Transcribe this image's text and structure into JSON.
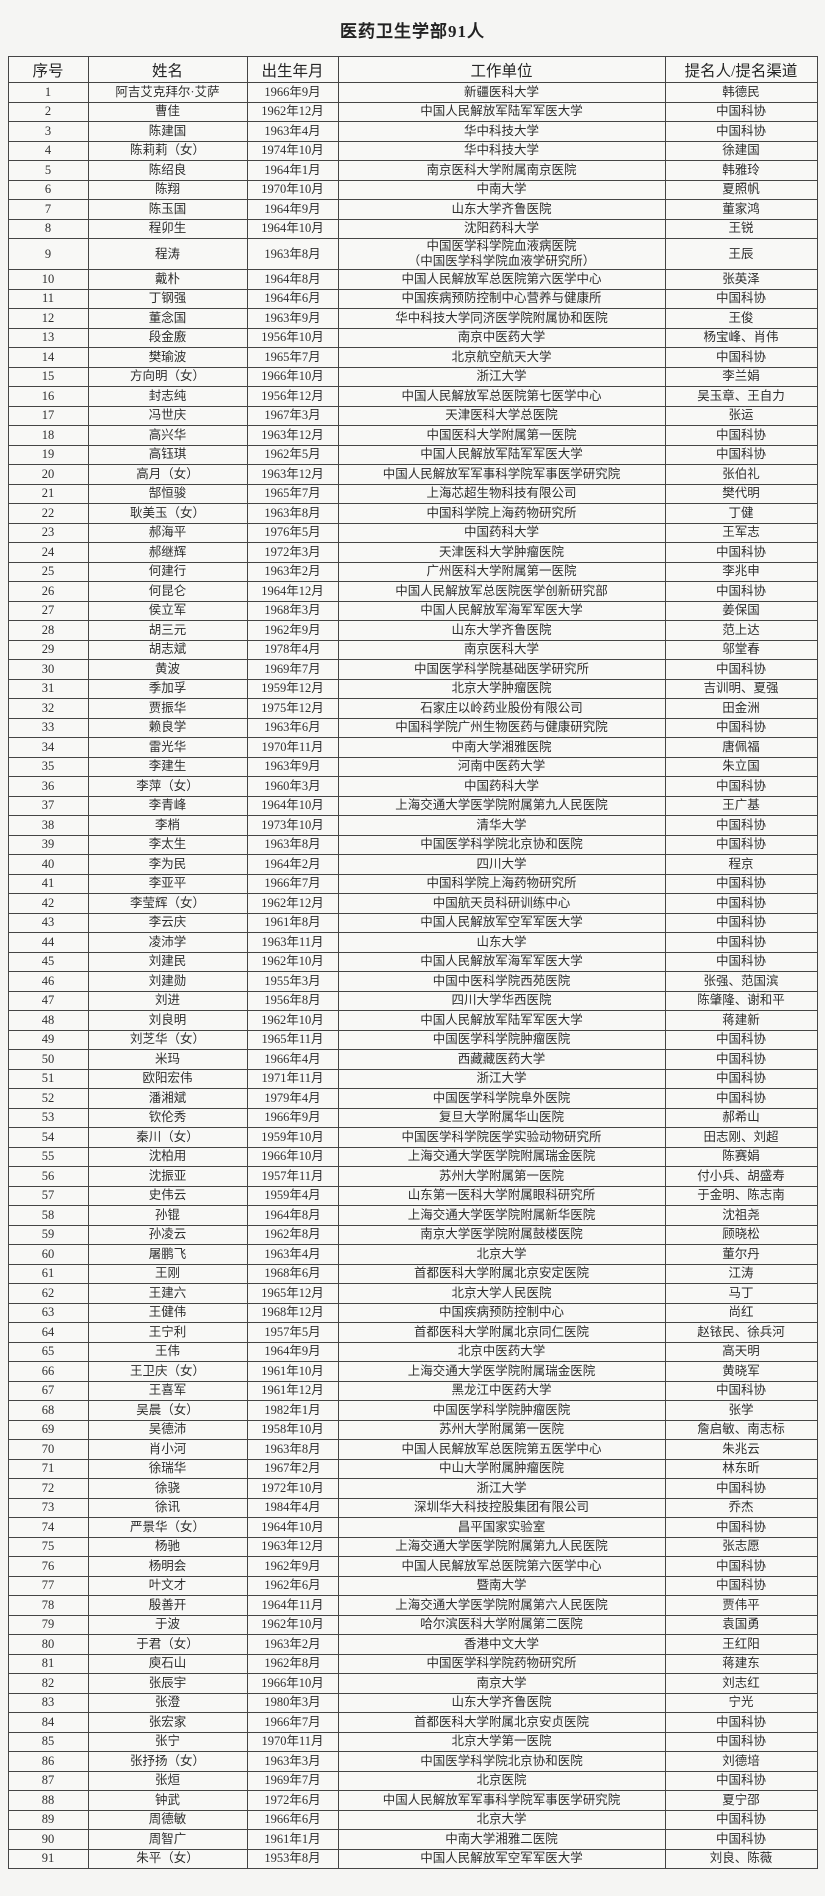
{
  "title": "医药卫生学部91人",
  "colors": {
    "page_background": "#f5f5f3",
    "table_background": "#f8f8f6",
    "border": "#454545",
    "text": "#2e2e2e"
  },
  "table": {
    "columns": [
      "序号",
      "姓名",
      "出生年月",
      "工作单位",
      "提名人/提名渠道"
    ],
    "rows": [
      [
        "1",
        "阿吉艾克拜尔·艾萨",
        "1966年9月",
        "新疆医科大学",
        "韩德民"
      ],
      [
        "2",
        "曹佳",
        "1962年12月",
        "中国人民解放军陆军军医大学",
        "中国科协"
      ],
      [
        "3",
        "陈建国",
        "1963年4月",
        "华中科技大学",
        "中国科协"
      ],
      [
        "4",
        "陈莉莉（女）",
        "1974年10月",
        "华中科技大学",
        "徐建国"
      ],
      [
        "5",
        "陈绍良",
        "1964年1月",
        "南京医科大学附属南京医院",
        "韩雅玲"
      ],
      [
        "6",
        "陈翔",
        "1970年10月",
        "中南大学",
        "夏照帆"
      ],
      [
        "7",
        "陈玉国",
        "1964年9月",
        "山东大学齐鲁医院",
        "董家鸿"
      ],
      [
        "8",
        "程卯生",
        "1964年10月",
        "沈阳药科大学",
        "王锐"
      ],
      [
        "9",
        "程涛",
        "1963年8月",
        "中国医学科学院血液病医院\n（中国医学科学院血液学研究所）",
        "王辰"
      ],
      [
        "10",
        "戴朴",
        "1964年8月",
        "中国人民解放军总医院第六医学中心",
        "张英泽"
      ],
      [
        "11",
        "丁钢强",
        "1964年6月",
        "中国疾病预防控制中心营养与健康所",
        "中国科协"
      ],
      [
        "12",
        "董念国",
        "1963年9月",
        "华中科技大学同济医学院附属协和医院",
        "王俊"
      ],
      [
        "13",
        "段金廒",
        "1956年10月",
        "南京中医药大学",
        "杨宝峰、肖伟"
      ],
      [
        "14",
        "樊瑜波",
        "1965年7月",
        "北京航空航天大学",
        "中国科协"
      ],
      [
        "15",
        "方向明（女）",
        "1966年10月",
        "浙江大学",
        "李兰娟"
      ],
      [
        "16",
        "封志纯",
        "1956年12月",
        "中国人民解放军总医院第七医学中心",
        "吴玉章、王自力"
      ],
      [
        "17",
        "冯世庆",
        "1967年3月",
        "天津医科大学总医院",
        "张运"
      ],
      [
        "18",
        "高兴华",
        "1963年12月",
        "中国医科大学附属第一医院",
        "中国科协"
      ],
      [
        "19",
        "高钰琪",
        "1962年5月",
        "中国人民解放军陆军军医大学",
        "中国科协"
      ],
      [
        "20",
        "高月（女）",
        "1963年12月",
        "中国人民解放军军事科学院军事医学研究院",
        "张伯礼"
      ],
      [
        "21",
        "郜恒骏",
        "1965年7月",
        "上海芯超生物科技有限公司",
        "樊代明"
      ],
      [
        "22",
        "耿美玉（女）",
        "1963年8月",
        "中国科学院上海药物研究所",
        "丁健"
      ],
      [
        "23",
        "郝海平",
        "1976年5月",
        "中国药科大学",
        "王军志"
      ],
      [
        "24",
        "郝继辉",
        "1972年3月",
        "天津医科大学肿瘤医院",
        "中国科协"
      ],
      [
        "25",
        "何建行",
        "1963年2月",
        "广州医科大学附属第一医院",
        "李兆申"
      ],
      [
        "26",
        "何昆仑",
        "1964年12月",
        "中国人民解放军总医院医学创新研究部",
        "中国科协"
      ],
      [
        "27",
        "侯立军",
        "1968年3月",
        "中国人民解放军海军军医大学",
        "姜保国"
      ],
      [
        "28",
        "胡三元",
        "1962年9月",
        "山东大学齐鲁医院",
        "范上达"
      ],
      [
        "29",
        "胡志斌",
        "1978年4月",
        "南京医科大学",
        "邬堂春"
      ],
      [
        "30",
        "黄波",
        "1969年7月",
        "中国医学科学院基础医学研究所",
        "中国科协"
      ],
      [
        "31",
        "季加孚",
        "1959年12月",
        "北京大学肿瘤医院",
        "吉训明、夏强"
      ],
      [
        "32",
        "贾振华",
        "1975年12月",
        "石家庄以岭药业股份有限公司",
        "田金洲"
      ],
      [
        "33",
        "赖良学",
        "1963年6月",
        "中国科学院广州生物医药与健康研究院",
        "中国科协"
      ],
      [
        "34",
        "雷光华",
        "1970年11月",
        "中南大学湘雅医院",
        "唐佩福"
      ],
      [
        "35",
        "李建生",
        "1963年9月",
        "河南中医药大学",
        "朱立国"
      ],
      [
        "36",
        "李萍（女）",
        "1960年3月",
        "中国药科大学",
        "中国科协"
      ],
      [
        "37",
        "李青峰",
        "1964年10月",
        "上海交通大学医学院附属第九人民医院",
        "王广基"
      ],
      [
        "38",
        "李梢",
        "1973年10月",
        "清华大学",
        "中国科协"
      ],
      [
        "39",
        "李太生",
        "1963年8月",
        "中国医学科学院北京协和医院",
        "中国科协"
      ],
      [
        "40",
        "李为民",
        "1964年2月",
        "四川大学",
        "程京"
      ],
      [
        "41",
        "李亚平",
        "1966年7月",
        "中国科学院上海药物研究所",
        "中国科协"
      ],
      [
        "42",
        "李莹辉（女）",
        "1962年12月",
        "中国航天员科研训练中心",
        "中国科协"
      ],
      [
        "43",
        "李云庆",
        "1961年8月",
        "中国人民解放军空军军医大学",
        "中国科协"
      ],
      [
        "44",
        "凌沛学",
        "1963年11月",
        "山东大学",
        "中国科协"
      ],
      [
        "45",
        "刘建民",
        "1962年10月",
        "中国人民解放军海军军医大学",
        "中国科协"
      ],
      [
        "46",
        "刘建勋",
        "1955年3月",
        "中国中医科学院西苑医院",
        "张强、范国滨"
      ],
      [
        "47",
        "刘进",
        "1956年8月",
        "四川大学华西医院",
        "陈肇隆、谢和平"
      ],
      [
        "48",
        "刘良明",
        "1962年10月",
        "中国人民解放军陆军军医大学",
        "蒋建新"
      ],
      [
        "49",
        "刘芝华（女）",
        "1965年11月",
        "中国医学科学院肿瘤医院",
        "中国科协"
      ],
      [
        "50",
        "米玛",
        "1966年4月",
        "西藏藏医药大学",
        "中国科协"
      ],
      [
        "51",
        "欧阳宏伟",
        "1971年11月",
        "浙江大学",
        "中国科协"
      ],
      [
        "52",
        "潘湘斌",
        "1979年4月",
        "中国医学科学院阜外医院",
        "中国科协"
      ],
      [
        "53",
        "钦伦秀",
        "1966年9月",
        "复旦大学附属华山医院",
        "郝希山"
      ],
      [
        "54",
        "秦川（女）",
        "1959年10月",
        "中国医学科学院医学实验动物研究所",
        "田志刚、刘超"
      ],
      [
        "55",
        "沈柏用",
        "1966年10月",
        "上海交通大学医学院附属瑞金医院",
        "陈赛娟"
      ],
      [
        "56",
        "沈振亚",
        "1957年11月",
        "苏州大学附属第一医院",
        "付小兵、胡盛寿"
      ],
      [
        "57",
        "史伟云",
        "1959年4月",
        "山东第一医科大学附属眼科研究所",
        "于金明、陈志南"
      ],
      [
        "58",
        "孙锟",
        "1964年8月",
        "上海交通大学医学院附属新华医院",
        "沈祖尧"
      ],
      [
        "59",
        "孙凌云",
        "1962年8月",
        "南京大学医学院附属鼓楼医院",
        "顾晓松"
      ],
      [
        "60",
        "屠鹏飞",
        "1963年4月",
        "北京大学",
        "董尔丹"
      ],
      [
        "61",
        "王刚",
        "1968年6月",
        "首都医科大学附属北京安定医院",
        "江涛"
      ],
      [
        "62",
        "王建六",
        "1965年12月",
        "北京大学人民医院",
        "马丁"
      ],
      [
        "63",
        "王健伟",
        "1968年12月",
        "中国疾病预防控制中心",
        "尚红"
      ],
      [
        "64",
        "王宁利",
        "1957年5月",
        "首都医科大学附属北京同仁医院",
        "赵铱民、徐兵河"
      ],
      [
        "65",
        "王伟",
        "1964年9月",
        "北京中医药大学",
        "高天明"
      ],
      [
        "66",
        "王卫庆（女）",
        "1961年10月",
        "上海交通大学医学院附属瑞金医院",
        "黄晓军"
      ],
      [
        "67",
        "王喜军",
        "1961年12月",
        "黑龙江中医药大学",
        "中国科协"
      ],
      [
        "68",
        "吴晨（女）",
        "1982年1月",
        "中国医学科学院肿瘤医院",
        "张学"
      ],
      [
        "69",
        "吴德沛",
        "1958年10月",
        "苏州大学附属第一医院",
        "詹启敏、南志标"
      ],
      [
        "70",
        "肖小河",
        "1963年8月",
        "中国人民解放军总医院第五医学中心",
        "朱兆云"
      ],
      [
        "71",
        "徐瑞华",
        "1967年2月",
        "中山大学附属肿瘤医院",
        "林东昕"
      ],
      [
        "72",
        "徐骁",
        "1972年10月",
        "浙江大学",
        "中国科协"
      ],
      [
        "73",
        "徐讯",
        "1984年4月",
        "深圳华大科技控股集团有限公司",
        "乔杰"
      ],
      [
        "74",
        "严景华（女）",
        "1964年10月",
        "昌平国家实验室",
        "中国科协"
      ],
      [
        "75",
        "杨驰",
        "1963年12月",
        "上海交通大学医学院附属第九人民医院",
        "张志愿"
      ],
      [
        "76",
        "杨明会",
        "1962年9月",
        "中国人民解放军总医院第六医学中心",
        "中国科协"
      ],
      [
        "77",
        "叶文才",
        "1962年6月",
        "暨南大学",
        "中国科协"
      ],
      [
        "78",
        "殷善开",
        "1964年11月",
        "上海交通大学医学院附属第六人民医院",
        "贾伟平"
      ],
      [
        "79",
        "于波",
        "1962年10月",
        "哈尔滨医科大学附属第二医院",
        "袁国勇"
      ],
      [
        "80",
        "于君（女）",
        "1963年2月",
        "香港中文大学",
        "王红阳"
      ],
      [
        "81",
        "庾石山",
        "1962年8月",
        "中国医学科学院药物研究所",
        "蒋建东"
      ],
      [
        "82",
        "张辰宇",
        "1966年10月",
        "南京大学",
        "刘志红"
      ],
      [
        "83",
        "张澄",
        "1980年3月",
        "山东大学齐鲁医院",
        "宁光"
      ],
      [
        "84",
        "张宏家",
        "1966年7月",
        "首都医科大学附属北京安贞医院",
        "中国科协"
      ],
      [
        "85",
        "张宁",
        "1970年11月",
        "北京大学第一医院",
        "中国科协"
      ],
      [
        "86",
        "张抒扬（女）",
        "1963年3月",
        "中国医学科学院北京协和医院",
        "刘德培"
      ],
      [
        "87",
        "张烜",
        "1969年7月",
        "北京医院",
        "中国科协"
      ],
      [
        "88",
        "钟武",
        "1972年6月",
        "中国人民解放军军事科学院军事医学研究院",
        "夏宁邵"
      ],
      [
        "89",
        "周德敏",
        "1966年6月",
        "北京大学",
        "中国科协"
      ],
      [
        "90",
        "周智广",
        "1961年1月",
        "中南大学湘雅二医院",
        "中国科协"
      ],
      [
        "91",
        "朱平（女）",
        "1953年8月",
        "中国人民解放军空军军医大学",
        "刘良、陈薇"
      ]
    ]
  }
}
